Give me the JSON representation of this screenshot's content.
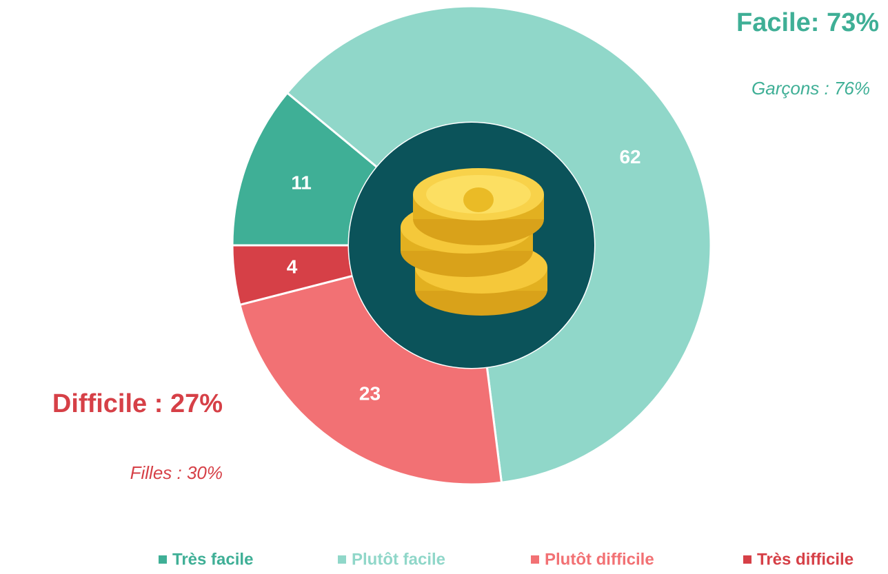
{
  "chart_data": {
    "type": "donut",
    "categories": [
      "Très facile",
      "Plutôt facile",
      "Plutôt difficile",
      "Très difficile"
    ],
    "values": [
      11,
      62,
      23,
      4
    ],
    "colors": [
      "#3faf96",
      "#90d7c9",
      "#f27174",
      "#d64047"
    ],
    "annotations": [
      "Facile: 73%",
      "Garçons : 76%",
      "Difficile : 27%",
      "Filles : 30%"
    ],
    "legend": "bottom"
  }
}
